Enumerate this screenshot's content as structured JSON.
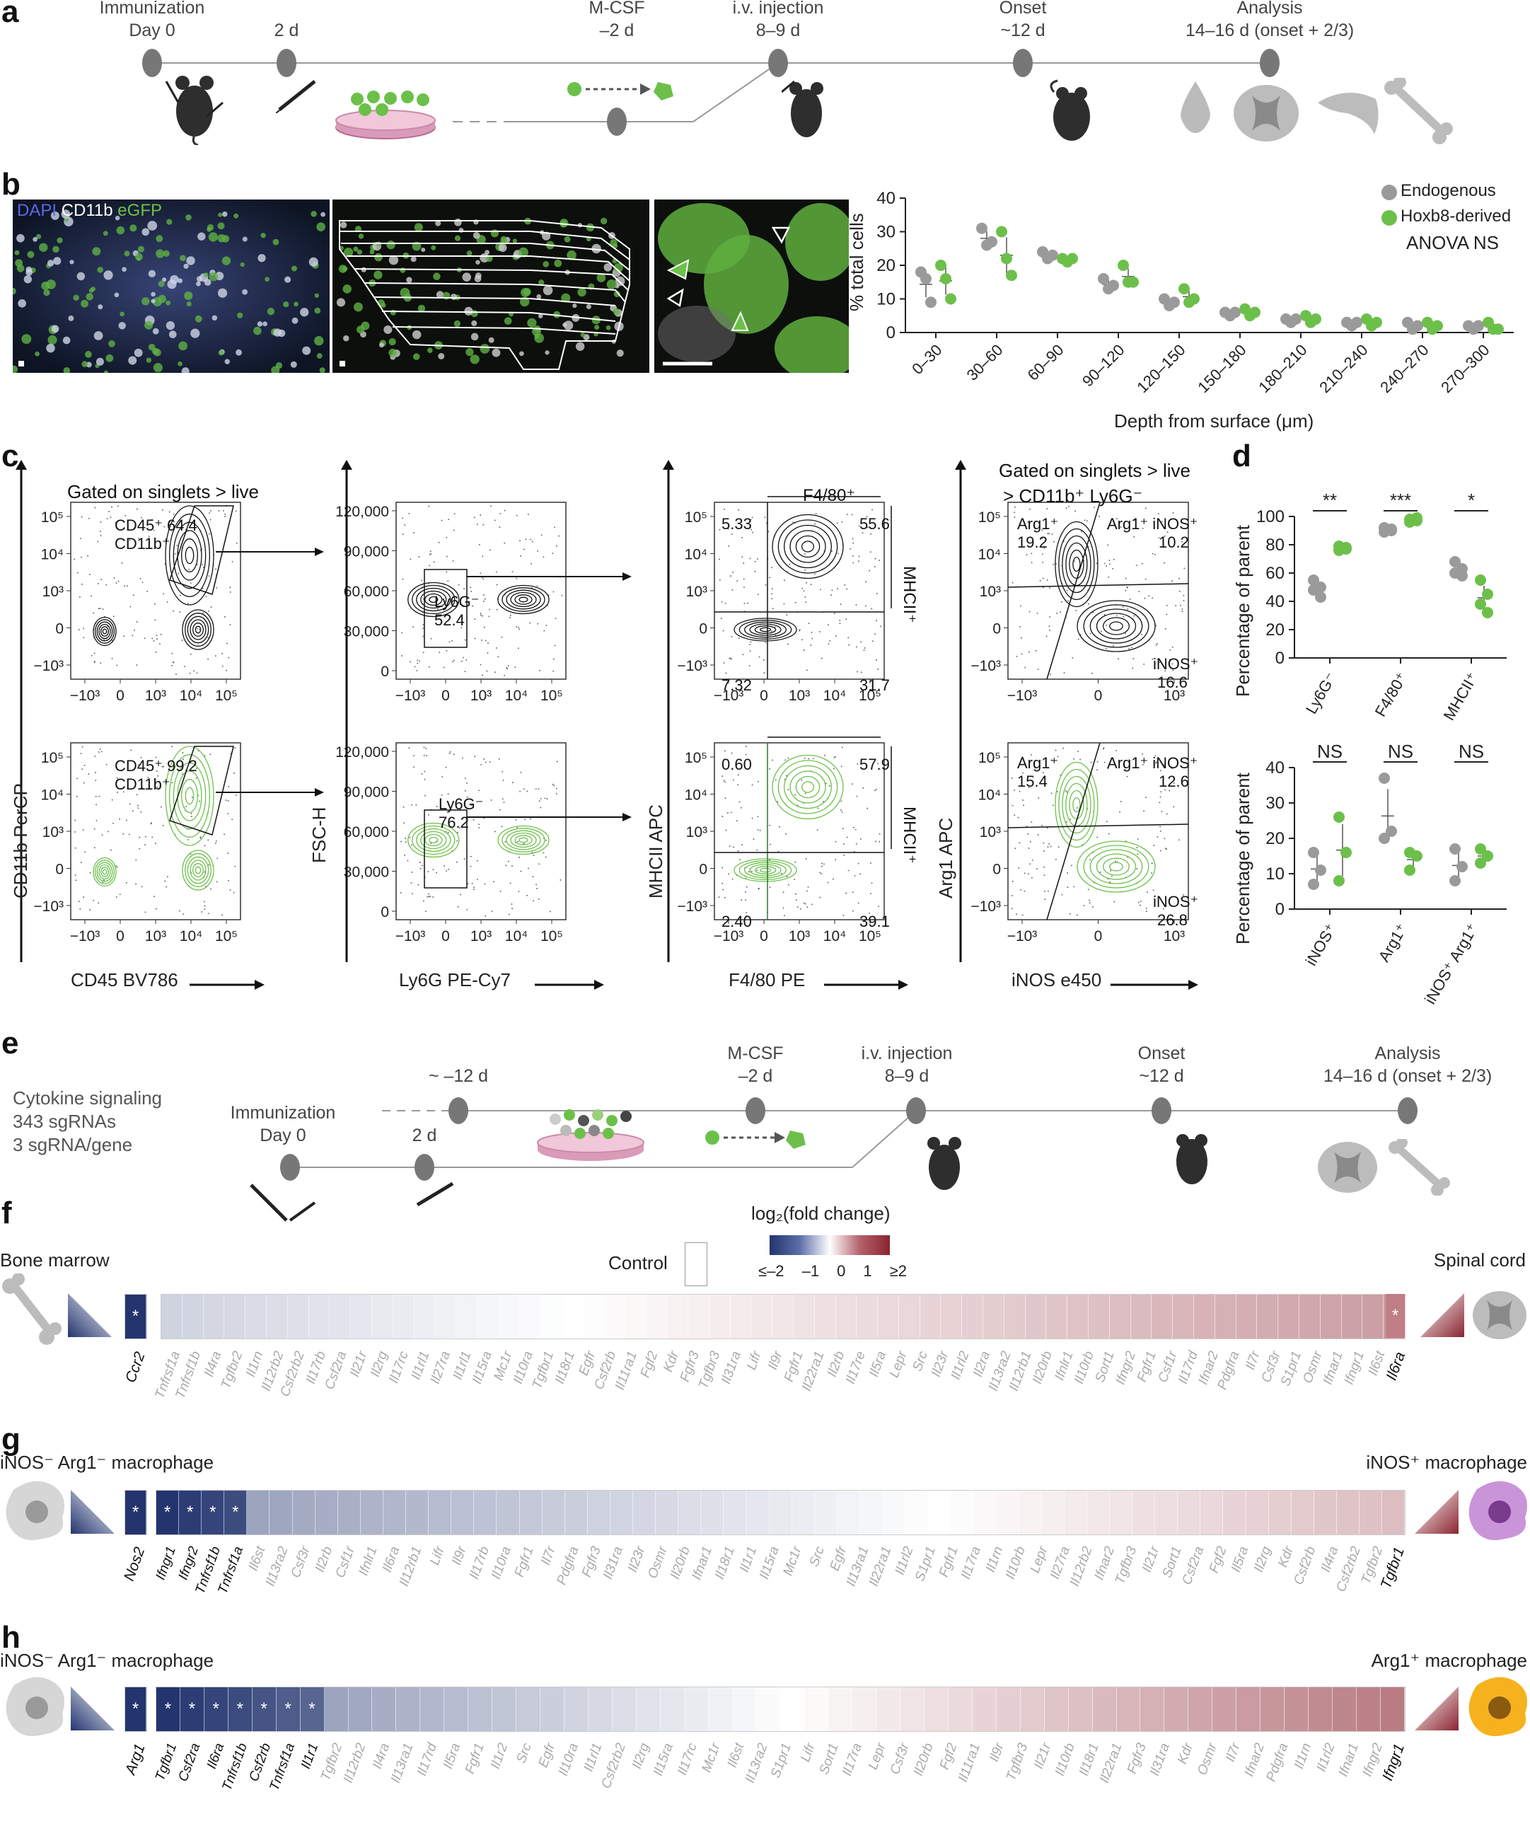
{
  "panels": {
    "a": "a",
    "b": "b",
    "c": "c",
    "d": "d",
    "e": "e",
    "f": "f",
    "g": "g",
    "h": "h"
  },
  "panel_a": {
    "immunization": "Immunization",
    "day0": "Day 0",
    "d2": "2 d",
    "mcsf": "M-CSF",
    "mcsf_day": "–2 d",
    "iv": "i.v. injection",
    "iv_day": "8–9 d",
    "onset": "Onset",
    "onset_day": "~12 d",
    "analysis": "Analysis",
    "analysis_day": "14–16 d (onset + 2/3)"
  },
  "panel_b": {
    "stain_dapi": "DAPI",
    "stain_cd11b": "CD11b",
    "stain_egfp": "eGFP",
    "chart_ylabel": "% total cells",
    "chart_xlabel": "Depth from surface (μm)",
    "legend_endogenous": "Endogenous",
    "legend_hoxb8": "Hoxb8-derived",
    "legend_anova": "ANOVA NS"
  },
  "panel_c": {
    "gated1": "Gated on singlets > live",
    "gated2_line1": "Gated on singlets > live",
    "gated2_line2": "> CD11b⁺ Ly6G⁻",
    "ax_cd11b": "CD11b PerCP",
    "ax_cd45": "CD45 BV786",
    "ax_fsch": "FSC-H",
    "ax_ly6g": "Ly6G PE-Cy7",
    "ax_mhcii": "MHCII APC",
    "ax_f480": "F4/80 PE",
    "ax_arg1": "Arg1 APC",
    "ax_inos": "iNOS e450",
    "gate_cd45_top": "CD45⁺ 64.4",
    "gate_cd45_bottom": "CD45⁺ 99.2",
    "gate_cd11b": "CD11b⁺",
    "ly6g_label": "Ly6G⁻",
    "ly6g_top": "52.4",
    "ly6g_bottom": "76.2",
    "f480_label": "F4/80⁺",
    "mhcii_label": "MHCII⁺",
    "q_top": [
      "5.33",
      "55.6",
      "7.32",
      "31.7"
    ],
    "q_bottom": [
      "0.60",
      "57.9",
      "2.40",
      "39.1"
    ],
    "arg1_label": "Arg1⁺",
    "arg1_inos_label": "Arg1⁺ iNOS⁺",
    "inos_label": "iNOS⁺",
    "arg_top": [
      "19.2",
      "10.2",
      "16.6"
    ],
    "arg_bottom": [
      "15.4",
      "12.6",
      "26.8"
    ],
    "ticks_fsc": [
      "120,000",
      "90,000",
      "60,000",
      "30,000",
      "0"
    ]
  },
  "panel_d": {
    "ylabel": "Percentage of parent",
    "sig_top": [
      "**",
      "***",
      "*"
    ],
    "sig_bottom": [
      "NS",
      "NS",
      "NS"
    ],
    "cats_top": [
      "Ly6G⁻",
      "F4/80⁺",
      "MHCII⁺"
    ],
    "cats_bottom": [
      "iNOS⁺",
      "Arg1⁺",
      "iNOS⁺ Arg1⁺"
    ]
  },
  "panel_e": {
    "cytokine": "Cytokine signaling",
    "sgrnas": "343 sgRNAs",
    "per_gene": "3 sgRNA/gene",
    "m12": "~ –12 d",
    "immunization": "Immunization",
    "day0": "Day 0",
    "d2": "2 d",
    "mcsf": "M-CSF",
    "mcsf_day": "–2 d",
    "iv": "i.v. injection",
    "iv_day": "8–9 d",
    "onset": "Onset",
    "onset_day": "~12 d",
    "analysis": "Analysis",
    "analysis_day": "14–16 d (onset + 2/3)"
  },
  "scale": {
    "title": "log₂(fold change)",
    "control": "Control",
    "ticks": [
      "≤–2",
      "–1",
      "0",
      "1",
      "≥2"
    ]
  },
  "panel_f": {
    "left": "Bone marrow",
    "right": "Spinal cord",
    "left_gene": "Ccr2",
    "right_gene": "Il6ra",
    "genes": [
      "Tnfrsf1a",
      "Tnfrsf1b",
      "Il4ra",
      "Tgfbr2",
      "Il1rn",
      "Il12rb2",
      "Csf2rb2",
      "Il17rb",
      "Csf2ra",
      "Il21r",
      "Il2rg",
      "Il17rc",
      "Il1rl1",
      "Il27ra",
      "Il1rl1",
      "Il15ra",
      "Mc1r",
      "Il10ra",
      "Tgfbr1",
      "Il18r1",
      "Egfr",
      "Csf2rb",
      "Il11ra1",
      "Fgf2",
      "Kdr",
      "Fgfr3",
      "Tgfbr3",
      "Il31ra",
      "Lifr",
      "Il9r",
      "Fgfr1",
      "Il22ra1",
      "Il2rb",
      "Il17re",
      "Il5ra",
      "Lepr",
      "Src",
      "Il23r",
      "Il1rl2",
      "Il2ra",
      "Il13ra2",
      "Il12rb1",
      "Il20rb",
      "Ifnlr1",
      "Il10rb",
      "Sort1",
      "Ifngr2",
      "Fgfr1",
      "Csf1r",
      "Il17rd",
      "Ifnar2",
      "Pdgfra",
      "Il7r",
      "Csf3r",
      "S1pr1",
      "Osmr",
      "Ifnar1",
      "Ifngr1",
      "Il6st"
    ]
  },
  "panel_g": {
    "left": "iNOS⁻ Arg1⁻ macrophage",
    "right": "iNOS⁺ macrophage",
    "left_gene": "Nos2",
    "right_gene": "Tgfbr1",
    "sig_genes": [
      "Ifngr1",
      "Ifngr2",
      "Tnfrsf1b",
      "Tnfrsf1a"
    ],
    "genes": [
      "Il6st",
      "Il13ra2",
      "Csf3r",
      "Il2rb",
      "Csf1r",
      "Ifnlr1",
      "Il6ra",
      "Il12rb1",
      "Lifr",
      "Il9r",
      "Il17rb",
      "Il10ra",
      "Fgfr1",
      "Il7r",
      "Pdgfra",
      "Fgfr3",
      "Il31ra",
      "Il23r",
      "Osmr",
      "Il20rb",
      "Ifnar1",
      "Il18r1",
      "Il1r1",
      "Il15ra",
      "Mc1r",
      "Src",
      "Egfr",
      "Il13ra1",
      "Il22ra1",
      "Il1rl2",
      "S1pr1",
      "Fgfr1",
      "Il17ra",
      "Il1rn",
      "Il10rb",
      "Lepr",
      "Il27ra",
      "Il12rb2",
      "Ifnar2",
      "Tgfbr3",
      "Il21r",
      "Sort1",
      "Csf2ra",
      "Fgf2",
      "Il5ra",
      "Il2rg",
      "Kdr",
      "Csf2rb",
      "Il4ra",
      "Csf2rb2",
      "Tgfbr2"
    ]
  },
  "panel_h": {
    "left": "iNOS⁻ Arg1⁻ macrophage",
    "right": "Arg1⁺ macrophage",
    "left_gene": "Arg1",
    "right_gene": "Ifngr1",
    "sig_genes": [
      "Tgfbr1",
      "Csf2ra",
      "Il6ra",
      "Tnfrsf1b",
      "Csf2rb",
      "Tnfrsf1a",
      "Il1r1"
    ],
    "genes": [
      "Tgfbr2",
      "Il12rb2",
      "Il4ra",
      "Il13ra1",
      "Il17rd",
      "Il5ra",
      "Fgfr1",
      "Il1r2",
      "Src",
      "Egfr",
      "Il10ra",
      "Il1rl1",
      "Csf2rb2",
      "Il2rg",
      "Il15ra",
      "Il17rc",
      "Mc1r",
      "Il6st",
      "Il13ra2",
      "S1pr1",
      "Lifr",
      "Sort1",
      "Il17ra",
      "Lepr",
      "Csf3r",
      "Il20rb",
      "Fgf2",
      "Il11ra1",
      "Il9r",
      "Tgfbr3",
      "Il21r",
      "Il10rb",
      "Il18r1",
      "Il22ra1",
      "Fgfr3",
      "Il31ra",
      "Kdr",
      "Osmr",
      "Il7r",
      "Ifnar2",
      "Pdgfra",
      "Il1rn",
      "Il1rl2",
      "Ifnar1",
      "Ifngr2"
    ]
  },
  "chart_data": [
    {
      "type": "scatter",
      "ylabel": "% total cells",
      "xlabel": "Depth from surface (μm)",
      "ylim": [
        0,
        40
      ],
      "yticks": [
        0,
        10,
        20,
        30,
        40
      ],
      "categories": [
        "0–30",
        "30–60",
        "60–90",
        "90–120",
        "120–150",
        "150–180",
        "180–210",
        "210–240",
        "240–270",
        "270–300"
      ],
      "series": [
        {
          "name": "Endogenous",
          "color": "#9a9a9a",
          "values": [
            [
              18,
              16,
              9
            ],
            [
              31,
              26,
              27
            ],
            [
              24,
              22,
              23
            ],
            [
              16,
              13,
              14
            ],
            [
              10,
              8,
              9
            ],
            [
              6,
              5,
              6
            ],
            [
              4,
              3,
              4
            ],
            [
              3,
              2,
              3
            ],
            [
              3,
              1,
              2
            ],
            [
              2,
              1,
              2
            ]
          ]
        },
        {
          "name": "Hoxb8-derived",
          "color": "#6cc04a",
          "values": [
            [
              20,
              16,
              10
            ],
            [
              30,
              22,
              17
            ],
            [
              22,
              21,
              22
            ],
            [
              20,
              15,
              15
            ],
            [
              13,
              9,
              10
            ],
            [
              7,
              5,
              6
            ],
            [
              5,
              3,
              4
            ],
            [
              4,
              2,
              3
            ],
            [
              3,
              1,
              2
            ],
            [
              3,
              1,
              1
            ]
          ]
        }
      ],
      "annotation": "ANOVA NS"
    },
    {
      "type": "scatter",
      "ylabel": "Percentage of parent",
      "ylim": [
        0,
        100
      ],
      "yticks": [
        0,
        20,
        40,
        60,
        80,
        100
      ],
      "categories": [
        "Ly6G⁻",
        "F4/80⁺",
        "MHCII⁺"
      ],
      "series": [
        {
          "color": "#9a9a9a",
          "values": [
            [
              55,
              50,
              48,
              43
            ],
            [
              92,
              90,
              89,
              91
            ],
            [
              68,
              63,
              60,
              58
            ]
          ]
        },
        {
          "color": "#6cc04a",
          "values": [
            [
              79,
              77,
              76,
              78
            ],
            [
              98,
              97,
              96,
              99
            ],
            [
              55,
              45,
              38,
              32
            ]
          ]
        }
      ],
      "significance": [
        "**",
        "***",
        "*"
      ]
    },
    {
      "type": "scatter",
      "ylabel": "Percentage of parent",
      "ylim": [
        0,
        40
      ],
      "yticks": [
        0,
        10,
        20,
        30,
        40
      ],
      "categories": [
        "iNOS⁺",
        "Arg1⁺",
        "iNOS⁺ Arg1⁺"
      ],
      "series": [
        {
          "color": "#9a9a9a",
          "values": [
            [
              16,
              11,
              7
            ],
            [
              37,
              22,
              20
            ],
            [
              17,
              12,
              8
            ]
          ]
        },
        {
          "color": "#6cc04a",
          "values": [
            [
              26,
              16,
              8
            ],
            [
              16,
              15,
              11
            ],
            [
              17,
              15,
              13
            ]
          ]
        }
      ],
      "significance": [
        "NS",
        "NS",
        "NS"
      ]
    }
  ],
  "colors": {
    "green": "#6cc04a",
    "grey": "#9a9a9a",
    "blue": "#23346e",
    "red": "#8a2430"
  }
}
